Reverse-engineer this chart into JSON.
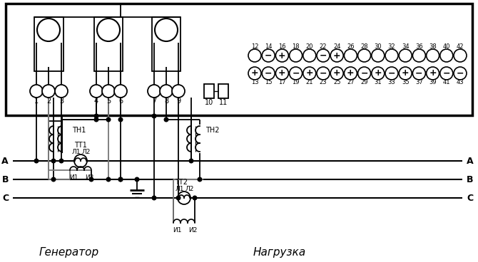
{
  "figsize": [
    6.7,
    3.68
  ],
  "dpi": 100,
  "label_generator": "Генератор",
  "label_load": "Нагрузка",
  "top_row_nums": [
    "12",
    "14",
    "16",
    "18",
    "20",
    "22",
    "24",
    "26",
    "28",
    "30",
    "32",
    "34",
    "36",
    "38",
    "40",
    "42"
  ],
  "top_row_signs": [
    "",
    "-",
    "+",
    "",
    "",
    "-",
    "+",
    "",
    "",
    "",
    "",
    "",
    "",
    "",
    "",
    ""
  ],
  "bot_row_nums": [
    "13",
    "15",
    "17",
    "19",
    "21",
    "23",
    "25",
    "27",
    "29",
    "31",
    "33",
    "35",
    "37",
    "39",
    "41",
    "43"
  ],
  "bot_row_signs": [
    "+",
    "-",
    "+",
    "-",
    "+",
    "-",
    "+",
    "+",
    "-",
    "+",
    "-",
    "+",
    "-",
    "+",
    "-",
    "-"
  ],
  "small_term_nums": [
    "1",
    "2",
    "3",
    "4",
    "5",
    "6",
    "7",
    "8",
    "9"
  ],
  "TH1": "ТН1",
  "TH2": "ТН2",
  "TT1": "ТТ1",
  "TT2": "ТТ2",
  "L1": "Л1",
  "L2": "Л2",
  "I1": "И1",
  "I2": "И2"
}
